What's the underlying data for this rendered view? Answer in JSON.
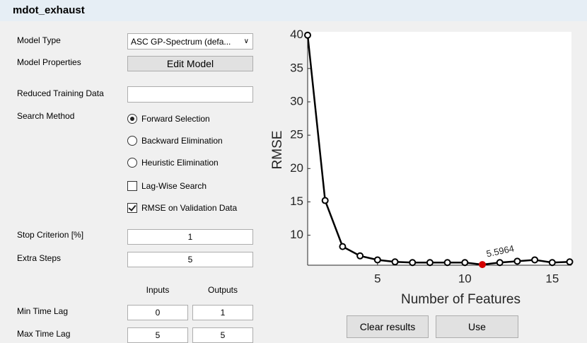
{
  "title": "mdot_exhaust",
  "form": {
    "model_type": {
      "label": "Model Type",
      "value": "ASC GP-Spectrum (defa..."
    },
    "model_properties": {
      "label": "Model Properties",
      "button": "Edit Model"
    },
    "reduced_training_data": {
      "label": "Reduced Training Data",
      "value": ""
    },
    "search_method": {
      "label": "Search Method",
      "options": [
        {
          "text": "Forward Selection",
          "checked": true
        },
        {
          "text": "Backward Elimination",
          "checked": false
        },
        {
          "text": "Heuristic Elimination",
          "checked": false
        }
      ]
    },
    "checkboxes": [
      {
        "text": "Lag-Wise Search",
        "checked": false
      },
      {
        "text": "RMSE on Validation Data",
        "checked": true
      }
    ],
    "stop_criterion": {
      "label": "Stop Criterion [%]",
      "value": "1"
    },
    "extra_steps": {
      "label": "Extra Steps",
      "value": "5"
    },
    "lag_headers": [
      "Inputs",
      "Outputs"
    ],
    "min_time_lag": {
      "label": "Min Time Lag",
      "values": [
        "0",
        "1"
      ]
    },
    "max_time_lag": {
      "label": "Max Time Lag",
      "values": [
        "5",
        "5"
      ]
    }
  },
  "buttons": [
    "Clear results",
    "Use"
  ],
  "chart_data": {
    "type": "line",
    "x_label": "Number of Features",
    "y_label": "RMSE",
    "x": [
      1,
      2,
      3,
      4,
      5,
      6,
      7,
      8,
      9,
      10,
      11,
      12,
      13,
      14,
      15,
      16
    ],
    "values": [
      40,
      15.2,
      8.3,
      6.9,
      6.3,
      6.0,
      5.9,
      5.9,
      5.9,
      5.9,
      5.5964,
      5.9,
      6.1,
      6.3,
      5.9,
      6.0
    ],
    "value_labels": [
      null,
      null,
      null,
      null,
      null,
      null,
      null,
      null,
      null,
      null,
      "5.5964",
      null,
      null,
      null,
      null,
      null
    ],
    "color": "#000000",
    "highlight_color": "#d40000",
    "xlim": [
      1,
      16.1
    ],
    "xticks": [
      5,
      10,
      15
    ],
    "ylim": [
      5.5,
      40.5
    ],
    "yticks": [
      10,
      15,
      20,
      25,
      30,
      35,
      40
    ]
  }
}
